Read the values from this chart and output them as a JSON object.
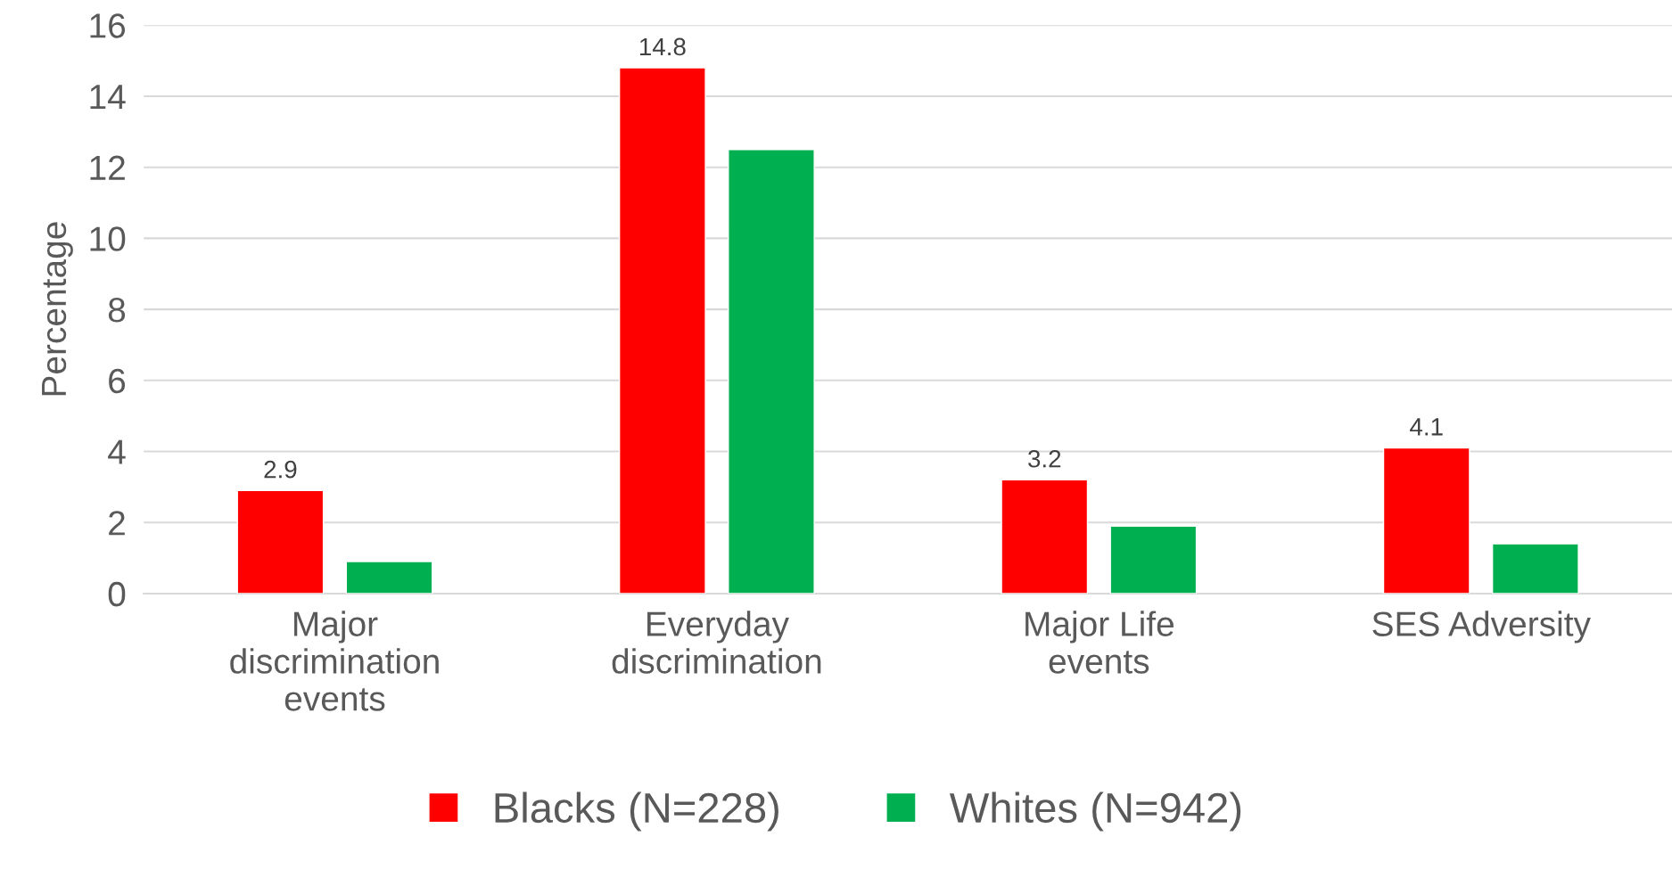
{
  "chart_data": {
    "type": "bar",
    "ylabel": "Percentage",
    "categories": [
      "Major discrimination events",
      "Everyday discrimination",
      "Major Life events",
      "SES Adversity"
    ],
    "series": [
      {
        "name": "Blacks (N=228)",
        "color": "#ff0000",
        "values": [
          2.9,
          14.8,
          3.2,
          4.1
        ],
        "value_labels": [
          "2.9",
          "14.8",
          "3.2",
          "4.1"
        ]
      },
      {
        "name": "Whites (N=942)",
        "color": "#00b050",
        "values": [
          0.9,
          12.5,
          1.9,
          1.4
        ]
      }
    ],
    "ylim": [
      0,
      16
    ],
    "yticks": [
      0,
      2,
      4,
      6,
      8,
      10,
      12,
      14,
      16
    ],
    "grid": "y",
    "legend": "bottom"
  }
}
